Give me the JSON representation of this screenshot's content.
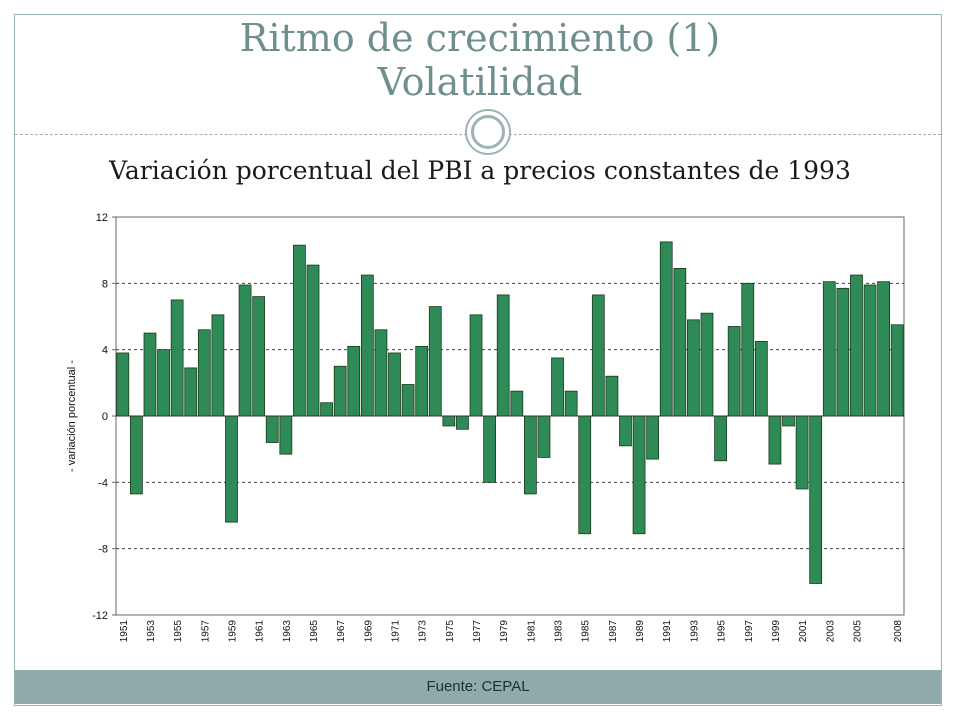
{
  "slide": {
    "title_line1": "Ritmo de crecimiento (1)",
    "title_line2": "Volatilidad",
    "subtitle": "Variación porcentual del PBI a precios constantes de 1993",
    "footer": "Fuente: CEPAL"
  },
  "colors": {
    "bar_fill": "#2e8b57",
    "bar_stroke": "#1a3a1a",
    "accent": "#8eaaaa",
    "title": "#6f8f8f"
  },
  "chart_data": {
    "type": "bar",
    "ylabel": "- variación porcentual -",
    "ylim": [
      -12,
      12
    ],
    "yticks": [
      -12,
      -8,
      -4,
      0,
      4,
      8,
      12
    ],
    "grid": "horizontal dashed",
    "x_tick_labels": [
      "1951",
      "1953",
      "1955",
      "1957",
      "1959",
      "1961",
      "1963",
      "1965",
      "1967",
      "1969",
      "1971",
      "1973",
      "1975",
      "1977",
      "1979",
      "1981",
      "1983",
      "1985",
      "1987",
      "1989",
      "1991",
      "1993",
      "1995",
      "1997",
      "1999",
      "2001",
      "2003",
      "2005",
      "2008"
    ],
    "categories": [
      "1951",
      "1952",
      "1953",
      "1954",
      "1955",
      "1956",
      "1957",
      "1958",
      "1959",
      "1960",
      "1961",
      "1962",
      "1963",
      "1964",
      "1965",
      "1966",
      "1967",
      "1968",
      "1969",
      "1970",
      "1971",
      "1972",
      "1973",
      "1974",
      "1975",
      "1976",
      "1977",
      "1978",
      "1979",
      "1980",
      "1981",
      "1982",
      "1983",
      "1984",
      "1985",
      "1986",
      "1987",
      "1988",
      "1989",
      "1990",
      "1991",
      "1992",
      "1993",
      "1994",
      "1995",
      "1996",
      "1997",
      "1998",
      "1999",
      "2000",
      "2001",
      "2002",
      "2003",
      "2004",
      "2005",
      "2006",
      "2007",
      "2008"
    ],
    "values": [
      3.8,
      -4.7,
      5.0,
      4.0,
      7.0,
      2.9,
      5.2,
      6.1,
      -6.4,
      7.9,
      7.2,
      -1.6,
      -2.3,
      10.3,
      9.1,
      0.8,
      3.0,
      4.2,
      8.5,
      5.2,
      3.8,
      1.9,
      4.2,
      6.6,
      -0.6,
      -0.8,
      6.1,
      -4.0,
      7.3,
      1.5,
      -4.7,
      -2.5,
      3.5,
      1.5,
      -7.1,
      7.3,
      2.4,
      -1.8,
      -7.1,
      -2.6,
      10.5,
      8.9,
      5.8,
      6.2,
      -2.7,
      5.4,
      8.0,
      4.5,
      -2.9,
      -0.6,
      -4.4,
      -10.1,
      8.1,
      7.7,
      8.5,
      7.9,
      8.1,
      5.5
    ]
  }
}
